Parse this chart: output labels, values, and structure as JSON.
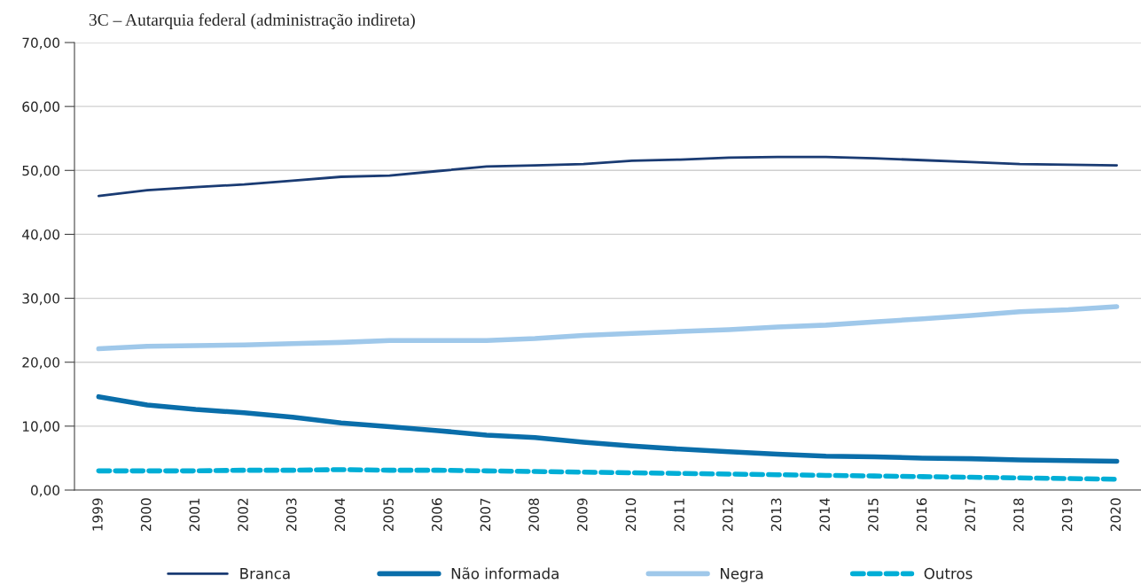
{
  "chart_data": {
    "type": "line",
    "title": "3C – Autarquia federal (administração indireta)",
    "categories": [
      "1999",
      "2000",
      "2001",
      "2002",
      "2003",
      "2004",
      "2005",
      "2006",
      "2007",
      "2008",
      "2009",
      "2010",
      "2011",
      "2012",
      "2013",
      "2014",
      "2015",
      "2016",
      "2017",
      "2018",
      "2019",
      "2020"
    ],
    "series": [
      {
        "name": "Branca",
        "color": "#1a3b73",
        "line_style": "solid",
        "values": [
          46.0,
          46.9,
          47.4,
          47.8,
          48.4,
          49.0,
          49.2,
          49.9,
          50.6,
          50.8,
          51.0,
          51.5,
          51.7,
          52.0,
          52.1,
          52.1,
          51.9,
          51.6,
          51.3,
          51.0,
          50.9,
          50.8
        ]
      },
      {
        "name": "Não informada",
        "color": "#0a6eaa",
        "line_style": "solid",
        "values": [
          14.6,
          13.3,
          12.6,
          12.1,
          11.4,
          10.5,
          9.9,
          9.3,
          8.6,
          8.2,
          7.5,
          6.9,
          6.4,
          6.0,
          5.6,
          5.3,
          5.2,
          5.0,
          4.9,
          4.7,
          4.6,
          4.5
        ]
      },
      {
        "name": "Negra",
        "color": "#9fc8ea",
        "line_style": "solid",
        "values": [
          22.1,
          22.5,
          22.6,
          22.7,
          22.9,
          23.1,
          23.4,
          23.4,
          23.4,
          23.7,
          24.2,
          24.5,
          24.8,
          25.1,
          25.5,
          25.8,
          26.3,
          26.8,
          27.3,
          27.9,
          28.2,
          28.7
        ]
      },
      {
        "name": "Outros",
        "color": "#00aed6",
        "line_style": "dashed",
        "values": [
          3.0,
          3.0,
          3.0,
          3.1,
          3.1,
          3.2,
          3.1,
          3.1,
          3.0,
          2.9,
          2.8,
          2.7,
          2.6,
          2.5,
          2.4,
          2.3,
          2.2,
          2.1,
          2.0,
          1.9,
          1.8,
          1.7
        ]
      }
    ],
    "ylim": [
      0,
      70
    ],
    "yticks": [
      {
        "value": 0,
        "label": "0,00"
      },
      {
        "value": 10,
        "label": "10,00"
      },
      {
        "value": 20,
        "label": "20,00"
      },
      {
        "value": 30,
        "label": "30,00"
      },
      {
        "value": 40,
        "label": "40,00"
      },
      {
        "value": 50,
        "label": "50,00"
      },
      {
        "value": 60,
        "label": "60,00"
      },
      {
        "value": 70,
        "label": "70,00"
      }
    ],
    "grid": "y",
    "legend": "bottom",
    "marker": "none"
  }
}
